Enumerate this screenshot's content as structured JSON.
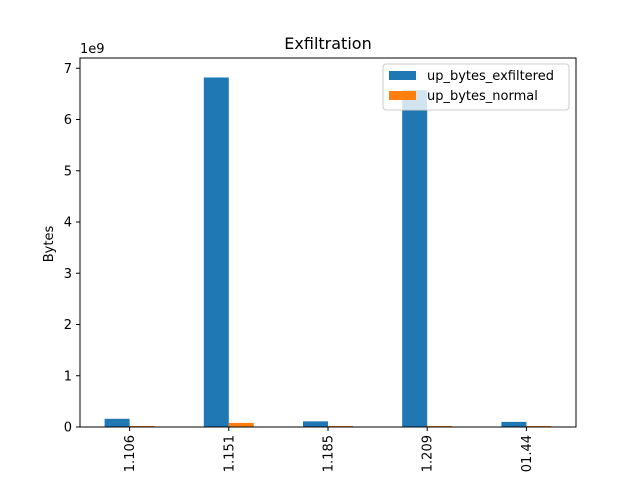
{
  "chart_data": {
    "type": "bar",
    "title": "Exfiltration",
    "xlabel": "",
    "ylabel": "Bytes",
    "y_offset_label": "1e9",
    "ylim": [
      0,
      7.2
    ],
    "yticks": [
      "0",
      "1",
      "2",
      "3",
      "4",
      "5",
      "6",
      "7"
    ],
    "categories": [
      "1.106",
      "1.151",
      "1.185",
      "1.209",
      "01.44"
    ],
    "series": [
      {
        "name": "up_bytes_exfiltered",
        "color": "#1f77b4",
        "values": [
          0.16,
          6.82,
          0.11,
          6.57,
          0.1
        ]
      },
      {
        "name": "up_bytes_normal",
        "color": "#ff7f0e",
        "values": [
          0.02,
          0.08,
          0.02,
          0.02,
          0.02
        ]
      }
    ],
    "legend": "top-right",
    "grid": false
  }
}
